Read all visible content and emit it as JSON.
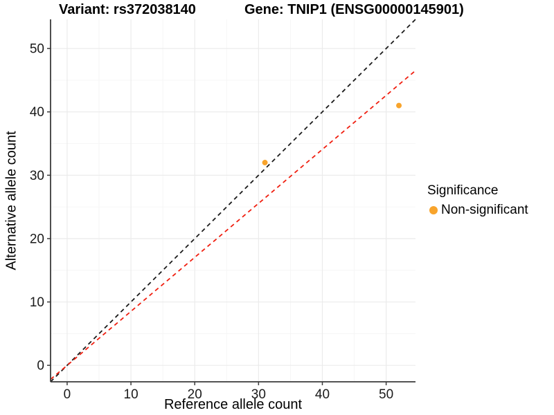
{
  "figure": {
    "title_variant": "Variant: rs372038140",
    "title_gene": "Gene: TNIP1 (ENSG00000145901)"
  },
  "legend": {
    "title": "Significance",
    "items": [
      {
        "label": "Non-significant",
        "color": "#F8A42C"
      }
    ]
  },
  "chart_data": {
    "type": "scatter",
    "title": "Variant: rs372038140 / Gene: TNIP1 (ENSG00000145901)",
    "xlabel": "Reference allele count",
    "ylabel": "Alternative allele count",
    "xlim": [
      -2.6,
      54.6
    ],
    "ylim": [
      -2.6,
      54.6
    ],
    "x_ticks": [
      0,
      10,
      20,
      30,
      40,
      50
    ],
    "y_ticks": [
      0,
      10,
      20,
      30,
      40,
      50
    ],
    "x_minor_ticks": [
      5,
      15,
      25,
      35,
      45
    ],
    "y_minor_ticks": [
      5,
      15,
      25,
      35,
      45
    ],
    "grid": true,
    "legend_position": "right",
    "series": [
      {
        "name": "Non-significant",
        "color": "#F8A42C",
        "point_radius": 4,
        "points": [
          {
            "x": 31,
            "y": 32
          },
          {
            "x": 52,
            "y": 41
          }
        ]
      }
    ],
    "lines": [
      {
        "name": "identity-line",
        "slope": 1.0,
        "intercept": 0,
        "color": "#1A1A1A",
        "style": "dashed"
      },
      {
        "name": "fitted-ratio-line",
        "slope": 0.852,
        "intercept": 0,
        "color": "#F01E0F",
        "style": "dashed"
      }
    ],
    "colors": {
      "grid_major": "#EBEBEB",
      "grid_minor": "#F5F5F5",
      "axis_line": "#3A3A3A",
      "tick_label": "#1A1A1A",
      "point": "#F8A42C"
    }
  }
}
